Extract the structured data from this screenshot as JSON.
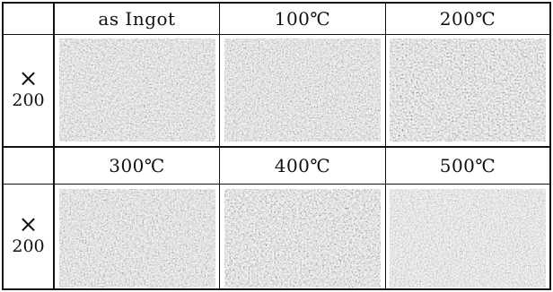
{
  "table": {
    "rows": [
      {
        "magnification": {
          "symbol": "×",
          "value": "200"
        },
        "conditions": [
          "as Ingot",
          "100℃",
          "200℃"
        ]
      },
      {
        "magnification": {
          "symbol": "×",
          "value": "200"
        },
        "conditions": [
          "300℃",
          "400℃",
          "500℃"
        ]
      }
    ]
  }
}
